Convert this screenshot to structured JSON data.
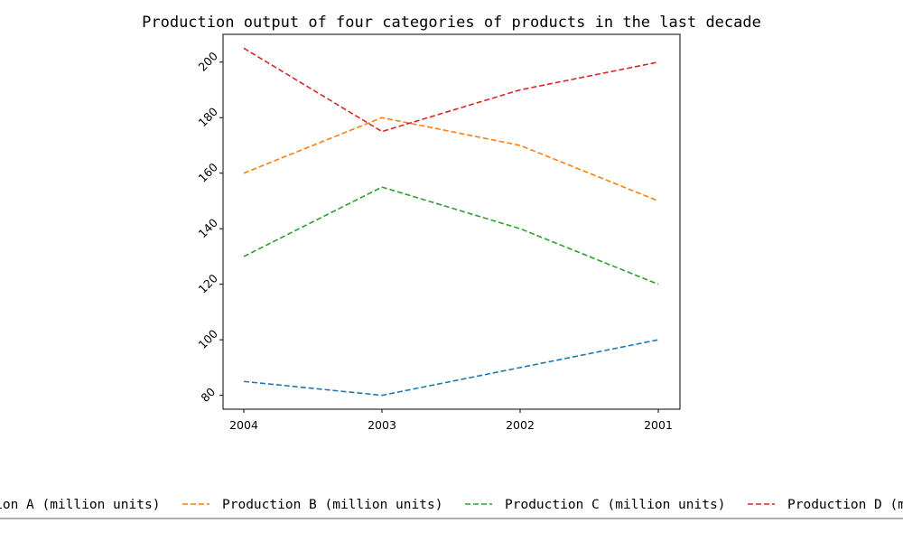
{
  "chart_data": {
    "type": "line",
    "title": "Production output of four categories of products in the last decade",
    "xlabel": "",
    "ylabel": "",
    "categories": [
      "2004",
      "2003",
      "2002",
      "2001"
    ],
    "ylim": [
      75,
      210
    ],
    "yticks": [
      "80",
      "100",
      "120",
      "140",
      "160",
      "180",
      "200"
    ],
    "grid": false,
    "line_style": "dashed",
    "legend_position": "bottom",
    "series": [
      {
        "name": "Production A (million units)",
        "values": [
          85,
          80,
          90,
          100
        ],
        "color": "#1f77b4"
      },
      {
        "name": "Production B (million units)",
        "values": [
          160,
          180,
          170,
          150
        ],
        "color": "#ff7f0e"
      },
      {
        "name": "Production C (million units)",
        "values": [
          130,
          155,
          140,
          120
        ],
        "color": "#2ca02c"
      },
      {
        "name": "Production D (million units)",
        "values": [
          205,
          175,
          190,
          200
        ],
        "color": "#d62728"
      }
    ]
  }
}
